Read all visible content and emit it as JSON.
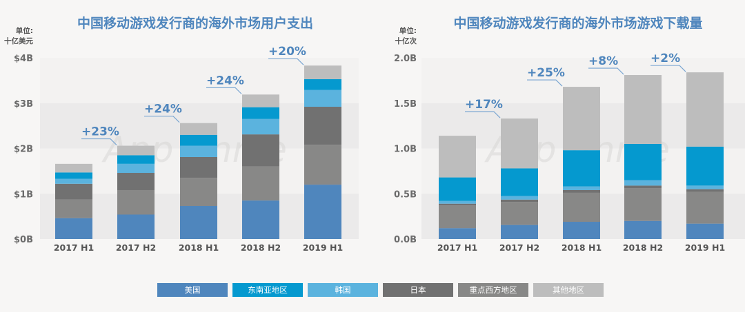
{
  "legend": [
    "美国",
    "东南亚地区",
    "韩国",
    "日本",
    "重点西方地区",
    "其他地区"
  ],
  "colors": {
    "美国": "#4f86bd",
    "东南亚地区": "#0599cf",
    "韩国": "#5bb3de",
    "日本": "#717171",
    "重点西方地区": "#888887",
    "其他地区": "#bdbdbd"
  },
  "watermark": "App Annie",
  "chart_data": [
    {
      "type": "bar",
      "stacked": true,
      "title": "中国移动游戏发行商的海外市场用户支出",
      "unit_label": [
        "单位:",
        "十亿美元"
      ],
      "categories": [
        "2017 H1",
        "2017 H2",
        "2018 H1",
        "2018 H2",
        "2019 H1"
      ],
      "ylim": [
        0,
        4
      ],
      "ticks": [
        {
          "v": 0,
          "label": "$0B"
        },
        {
          "v": 1,
          "label": "$1B"
        },
        {
          "v": 2,
          "label": "$2B"
        },
        {
          "v": 3,
          "label": "$3B"
        },
        {
          "v": 4,
          "label": "$4B"
        }
      ],
      "series": [
        {
          "name": "美国",
          "values": [
            0.46,
            0.54,
            0.73,
            0.85,
            1.2
          ]
        },
        {
          "name": "重点西方地区",
          "values": [
            0.41,
            0.54,
            0.62,
            0.75,
            0.88
          ]
        },
        {
          "name": "日本",
          "values": [
            0.35,
            0.38,
            0.46,
            0.71,
            0.84
          ]
        },
        {
          "name": "韩国",
          "values": [
            0.11,
            0.2,
            0.25,
            0.34,
            0.37
          ]
        },
        {
          "name": "东南亚地区",
          "values": [
            0.14,
            0.19,
            0.24,
            0.26,
            0.24
          ]
        },
        {
          "name": "其他地区",
          "values": [
            0.19,
            0.21,
            0.26,
            0.28,
            0.3
          ]
        }
      ],
      "growth_labels": [
        "+23%",
        "+24%",
        "+24%",
        "+20%"
      ]
    },
    {
      "type": "bar",
      "stacked": true,
      "title": "中国移动游戏发行商的海外市场游戏下载量",
      "unit_label": [
        "单位:",
        "十亿次"
      ],
      "categories": [
        "2017 H1",
        "2017 H2",
        "2018 H1",
        "2018 H2",
        "2019 H1"
      ],
      "ylim": [
        0,
        2
      ],
      "ticks": [
        {
          "v": 0,
          "label": "0.0B"
        },
        {
          "v": 0.5,
          "label": "0.5B"
        },
        {
          "v": 1,
          "label": "1.0B"
        },
        {
          "v": 1.5,
          "label": "1.5B"
        },
        {
          "v": 2,
          "label": "2.0B"
        }
      ],
      "series": [
        {
          "name": "美国",
          "values": [
            0.12,
            0.155,
            0.19,
            0.2,
            0.17
          ]
        },
        {
          "name": "重点西方地区",
          "values": [
            0.25,
            0.255,
            0.32,
            0.36,
            0.35
          ]
        },
        {
          "name": "日本",
          "values": [
            0.02,
            0.025,
            0.03,
            0.03,
            0.03
          ]
        },
        {
          "name": "韩国",
          "values": [
            0.03,
            0.04,
            0.04,
            0.06,
            0.04
          ]
        },
        {
          "name": "东南亚地区",
          "values": [
            0.26,
            0.305,
            0.4,
            0.4,
            0.43
          ]
        },
        {
          "name": "其他地区",
          "values": [
            0.46,
            0.55,
            0.7,
            0.76,
            0.82
          ]
        }
      ],
      "growth_labels": [
        "+17%",
        "+25%",
        "+8%",
        "+2%"
      ]
    }
  ]
}
